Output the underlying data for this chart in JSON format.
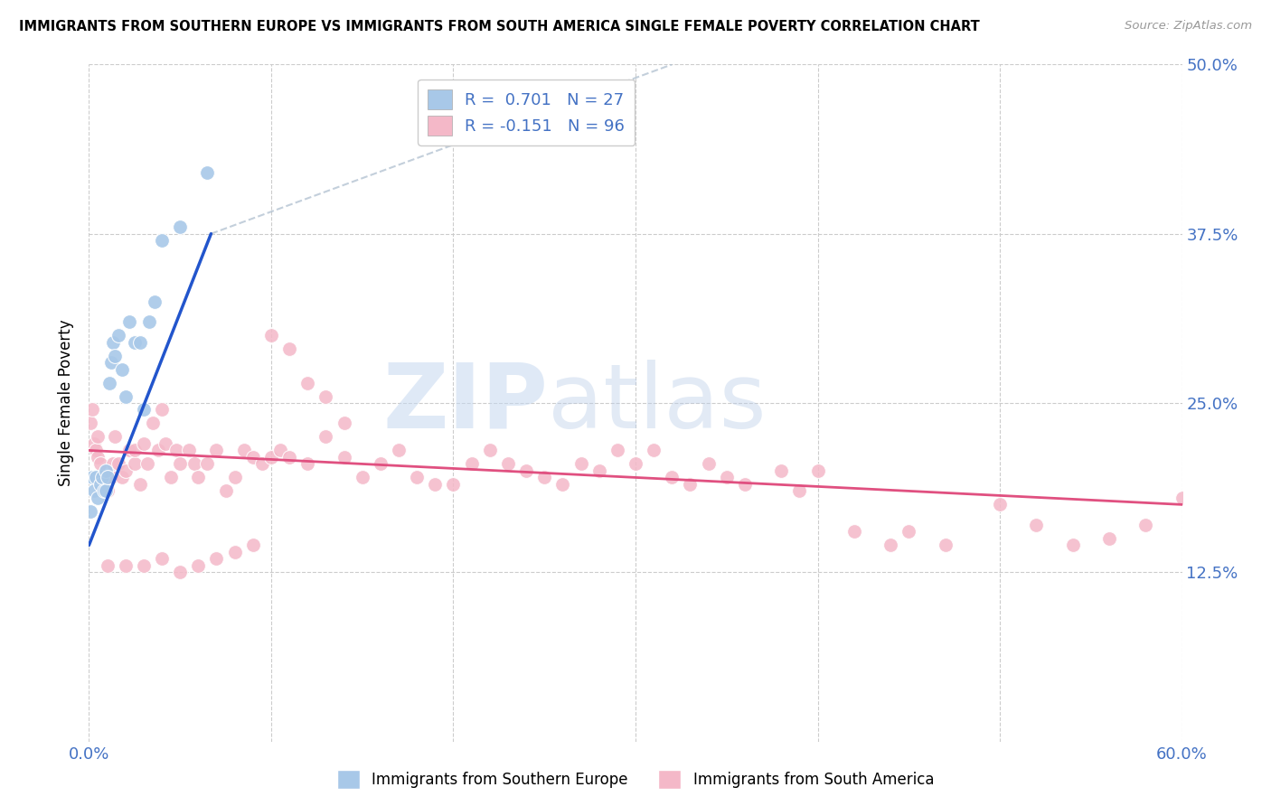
{
  "title": "IMMIGRANTS FROM SOUTHERN EUROPE VS IMMIGRANTS FROM SOUTH AMERICA SINGLE FEMALE POVERTY CORRELATION CHART",
  "source": "Source: ZipAtlas.com",
  "ylabel": "Single Female Poverty",
  "xlim": [
    0,
    0.6
  ],
  "ylim": [
    0,
    0.5
  ],
  "ytick_labels": [
    "12.5%",
    "25.0%",
    "37.5%",
    "50.0%"
  ],
  "ytick_values": [
    0.125,
    0.25,
    0.375,
    0.5
  ],
  "xtick_grid": [
    0.0,
    0.1,
    0.2,
    0.3,
    0.4,
    0.5,
    0.6
  ],
  "color_blue": "#a8c8e8",
  "color_pink": "#f4b8c8",
  "color_blue_line": "#2255cc",
  "color_pink_line": "#e05080",
  "color_blue_dark": "#4472c4",
  "R_blue": "0.701",
  "N_blue": "27",
  "R_pink": "-0.151",
  "N_pink": "96",
  "legend_label_blue": "Immigrants from Southern Europe",
  "legend_label_pink": "Immigrants from South America",
  "watermark_zip": "ZIP",
  "watermark_atlas": "atlas",
  "blue_line_x0": 0.0,
  "blue_line_y0": 0.145,
  "blue_line_x1": 0.067,
  "blue_line_y1": 0.375,
  "blue_line_ext_x1": 0.32,
  "blue_line_ext_y1": 0.5,
  "pink_line_x0": 0.0,
  "pink_line_y0": 0.215,
  "pink_line_x1": 0.6,
  "pink_line_y1": 0.175,
  "blue_pts_x": [
    0.001,
    0.002,
    0.003,
    0.004,
    0.005,
    0.006,
    0.007,
    0.008,
    0.009,
    0.009,
    0.01,
    0.011,
    0.012,
    0.013,
    0.014,
    0.016,
    0.018,
    0.02,
    0.022,
    0.025,
    0.028,
    0.03,
    0.033,
    0.036,
    0.04,
    0.05,
    0.065
  ],
  "blue_pts_y": [
    0.17,
    0.195,
    0.185,
    0.195,
    0.18,
    0.19,
    0.195,
    0.185,
    0.185,
    0.2,
    0.195,
    0.265,
    0.28,
    0.295,
    0.285,
    0.3,
    0.275,
    0.255,
    0.31,
    0.295,
    0.295,
    0.245,
    0.31,
    0.325,
    0.37,
    0.38,
    0.42
  ],
  "pink_pts_x": [
    0.001,
    0.002,
    0.003,
    0.004,
    0.005,
    0.005,
    0.006,
    0.007,
    0.008,
    0.009,
    0.01,
    0.011,
    0.012,
    0.013,
    0.014,
    0.016,
    0.018,
    0.02,
    0.022,
    0.025,
    0.025,
    0.028,
    0.03,
    0.032,
    0.035,
    0.038,
    0.04,
    0.042,
    0.045,
    0.048,
    0.05,
    0.055,
    0.058,
    0.06,
    0.065,
    0.07,
    0.075,
    0.08,
    0.085,
    0.09,
    0.095,
    0.1,
    0.105,
    0.11,
    0.12,
    0.13,
    0.14,
    0.15,
    0.16,
    0.17,
    0.18,
    0.19,
    0.2,
    0.21,
    0.22,
    0.23,
    0.24,
    0.25,
    0.26,
    0.27,
    0.28,
    0.29,
    0.3,
    0.31,
    0.32,
    0.33,
    0.34,
    0.35,
    0.36,
    0.38,
    0.39,
    0.4,
    0.42,
    0.44,
    0.45,
    0.47,
    0.5,
    0.52,
    0.54,
    0.56,
    0.58,
    0.6,
    0.01,
    0.02,
    0.03,
    0.04,
    0.05,
    0.06,
    0.07,
    0.08,
    0.09,
    0.1,
    0.11,
    0.12,
    0.13,
    0.14
  ],
  "pink_pts_y": [
    0.235,
    0.245,
    0.22,
    0.215,
    0.21,
    0.225,
    0.205,
    0.195,
    0.19,
    0.19,
    0.185,
    0.195,
    0.195,
    0.205,
    0.225,
    0.205,
    0.195,
    0.2,
    0.215,
    0.205,
    0.215,
    0.19,
    0.22,
    0.205,
    0.235,
    0.215,
    0.245,
    0.22,
    0.195,
    0.215,
    0.205,
    0.215,
    0.205,
    0.195,
    0.205,
    0.215,
    0.185,
    0.195,
    0.215,
    0.21,
    0.205,
    0.21,
    0.215,
    0.21,
    0.205,
    0.225,
    0.21,
    0.195,
    0.205,
    0.215,
    0.195,
    0.19,
    0.19,
    0.205,
    0.215,
    0.205,
    0.2,
    0.195,
    0.19,
    0.205,
    0.2,
    0.215,
    0.205,
    0.215,
    0.195,
    0.19,
    0.205,
    0.195,
    0.19,
    0.2,
    0.185,
    0.2,
    0.155,
    0.145,
    0.155,
    0.145,
    0.175,
    0.16,
    0.145,
    0.15,
    0.16,
    0.18,
    0.13,
    0.13,
    0.13,
    0.135,
    0.125,
    0.13,
    0.135,
    0.14,
    0.145,
    0.3,
    0.29,
    0.265,
    0.255,
    0.235
  ]
}
